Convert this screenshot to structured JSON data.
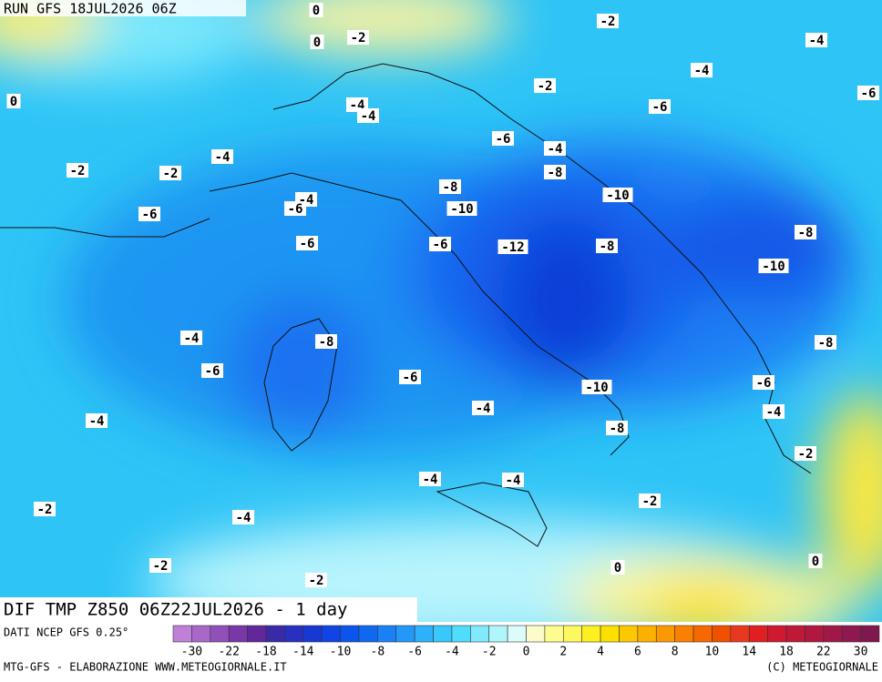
{
  "header": {
    "run": "RUN GFS 18JUL2026 06Z"
  },
  "map": {
    "field_title": "DIF TMP Z850 06Z22JUL2026 - 1 day",
    "contour_labels": [
      0,
      0,
      -2,
      -2,
      -4,
      -4,
      -2,
      -6,
      0,
      -4,
      -4,
      -6,
      -6,
      -4,
      -8,
      -2,
      -2,
      -4,
      -8,
      -10,
      -4,
      -6,
      -10,
      -6,
      -6,
      -6,
      -12,
      -8,
      -8,
      -10,
      -4,
      -8,
      -8,
      -6,
      -6,
      -6,
      -10,
      -4,
      -4,
      -4,
      -8,
      -2,
      -4,
      -4,
      -2,
      -2,
      -4,
      0,
      0,
      -2,
      -2
    ]
  },
  "colorbar": {
    "source": "DATI NCEP GFS 0.25°",
    "colors": [
      "#c080d8",
      "#a868c8",
      "#9050b8",
      "#7838a8",
      "#602898",
      "#3a2aa8",
      "#2830c0",
      "#1838d4",
      "#1044e4",
      "#0c54ee",
      "#1068f2",
      "#1a80f6",
      "#2498f8",
      "#2eb0fa",
      "#38c8fc",
      "#50dcfc",
      "#80eafc",
      "#b0f4fc",
      "#dcfcfc",
      "#fcfcc8",
      "#fcfc90",
      "#fcf860",
      "#fcf020",
      "#fce000",
      "#fcc800",
      "#fcb000",
      "#fc9800",
      "#fc8000",
      "#f86800",
      "#f05000",
      "#e83820",
      "#e02020",
      "#d01830",
      "#c01838",
      "#b01840",
      "#a01848",
      "#901850",
      "#801850"
    ],
    "ticks": [
      -30,
      -22,
      -18,
      -14,
      -10,
      -8,
      -6,
      -4,
      -2,
      0,
      2,
      4,
      6,
      8,
      10,
      14,
      18,
      22,
      30
    ]
  },
  "footer": {
    "left": "MTG-GFS - ELABORAZIONE WWW.METEOGIORNALE.IT",
    "right": "(C) METEOGIORNALE"
  }
}
